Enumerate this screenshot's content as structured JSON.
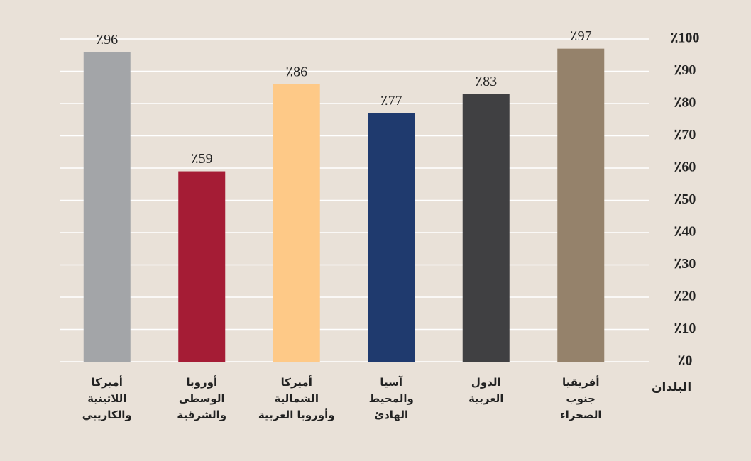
{
  "chart_data": {
    "type": "bar",
    "x_label": "البلدان",
    "categories": [
      "أفريقيا\nجنوب\nالصحراء",
      "الدول\nالعربية",
      "آسيا\nوالمحيط\nالهادئ",
      "أميركا\nالشمالية\nوأوروبا الغربية",
      "أوروبا\nالوسطى\nوالشرقية",
      "أميركا\nاللاتينية\nوالكاريبي"
    ],
    "values": [
      97,
      83,
      77,
      86,
      59,
      96
    ],
    "value_labels": [
      "٪97",
      "٪83",
      "٪77",
      "٪86",
      "٪59",
      "٪96"
    ],
    "colors": [
      "#95826b",
      "#404042",
      "#1f3a6e",
      "#fec987",
      "#a51c35",
      "#a3a5a8"
    ],
    "ylim": [
      0,
      100
    ],
    "yticks": [
      {
        "value": 0,
        "label": "٪0"
      },
      {
        "value": 10,
        "label": "٪10"
      },
      {
        "value": 20,
        "label": "٪20"
      },
      {
        "value": 30,
        "label": "٪30"
      },
      {
        "value": 40,
        "label": "٪40"
      },
      {
        "value": 50,
        "label": "٪50"
      },
      {
        "value": 60,
        "label": "٪60"
      },
      {
        "value": 70,
        "label": "٪70"
      },
      {
        "value": 80,
        "label": "٪80"
      },
      {
        "value": 90,
        "label": "٪90"
      },
      {
        "value": 100,
        "label": "٪100"
      }
    ],
    "grid": true
  }
}
